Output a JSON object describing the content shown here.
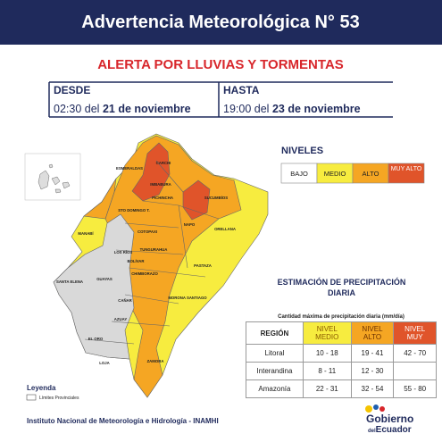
{
  "header": {
    "title": "Advertencia Meteorológica N° 53"
  },
  "alert": {
    "title": "ALERTA POR LLUVIAS Y TORMENTAS",
    "from": {
      "label": "DESDE",
      "time": "02:30",
      "connector": "del",
      "date": "21 de noviembre"
    },
    "to": {
      "label": "HASTA",
      "time": "19:00",
      "connector": "del",
      "date": "23 de noviembre"
    }
  },
  "levels": {
    "title": "NIVELES",
    "items": [
      "BAJO",
      "MEDIO",
      "ALTO",
      "MUY ALTO"
    ]
  },
  "map": {
    "provinces": [
      "ESMERALDAS",
      "CARCHI",
      "IMBABURA",
      "PICHINCHA",
      "STO DOMINGO T.",
      "SUCUMBÍOS",
      "NAPO",
      "ORELLANA",
      "MANABÍ",
      "COTOPAXI",
      "TUNGURAHUA",
      "LOS RÍOS",
      "BOLÍVAR",
      "PASTAZA",
      "SANTA ELENA",
      "GUAYAS",
      "CHIMBORAZO",
      "CAÑAR",
      "MORONA SANTIAGO",
      "AZUAY",
      "EL ORO",
      "LOJA",
      "ZAMORA"
    ]
  },
  "legend": {
    "title": "Leyenda",
    "items": [
      "Límites Provinciales"
    ]
  },
  "table": {
    "title": "ESTIMACIÓN DE PRECIPITACIÓN DIARIA",
    "caption": "Cantidad máxima de precipitación diaria (mm/día)",
    "headers": [
      "REGIÓN",
      "NIVEL MEDIO",
      "NIVEL ALTO",
      "NIVEL MUY"
    ],
    "rows": [
      [
        "Litoral",
        "10 - 18",
        "19 - 41",
        "42 - 70"
      ],
      [
        "Interandina",
        "8 - 11",
        "12 - 30",
        ""
      ],
      [
        "Amazonía",
        "22 - 31",
        "32 - 54",
        "55 - 80"
      ]
    ]
  },
  "footer": {
    "institution": "Instituto Nacional de Meteorología e Hidrología - INAMHI",
    "logo": {
      "line1": "Gobierno",
      "line2": "del",
      "line3": "Ecuador"
    }
  }
}
